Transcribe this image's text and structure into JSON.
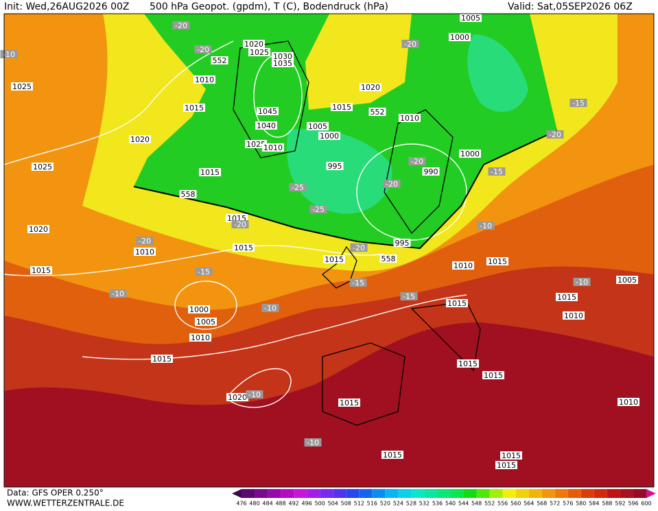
{
  "header": {
    "init": "Init: Wed,26AUG2026 00Z",
    "title": "500 hPa Geopot. (gpdm), T (C), Bodendruck (hPa)",
    "valid": "Valid: Sat,05SEP2026 06Z"
  },
  "map": {
    "pressure_labels": [
      "1005",
      "1000",
      "1020",
      "1025",
      "1030",
      "1035",
      "1010",
      "1015",
      "1045",
      "1040",
      "1025",
      "1010",
      "1005",
      "1000",
      "995",
      "1015",
      "1020",
      "1025",
      "1025",
      "1020",
      "1015",
      "1010",
      "1015",
      "1015",
      "1015",
      "995",
      "990",
      "1000",
      "1010",
      "1020",
      "1015",
      "1010",
      "1015",
      "1015",
      "1005",
      "1015",
      "1010",
      "1015",
      "1015",
      "1015",
      "1000",
      "1005",
      "1010",
      "1020",
      "1015",
      "1015",
      "1015",
      "1015",
      "1010"
    ],
    "temperature_labels": [
      "-20",
      "-20",
      "-20",
      "-15",
      "-20",
      "-15",
      "-20",
      "-20",
      "-25",
      "-25",
      "-20",
      "-20",
      "-20",
      "-15",
      "-10",
      "-10",
      "-15",
      "-15",
      "-10",
      "-10",
      "-10",
      "-10",
      "-10"
    ],
    "height_labels": [
      "552",
      "552",
      "558",
      "558"
    ]
  },
  "colorbar": {
    "labels": [
      "476",
      "480",
      "484",
      "488",
      "492",
      "496",
      "500",
      "504",
      "508",
      "512",
      "516",
      "520",
      "524",
      "528",
      "532",
      "536",
      "540",
      "544",
      "548",
      "552",
      "556",
      "560",
      "564",
      "568",
      "572",
      "576",
      "580",
      "584",
      "588",
      "592",
      "596",
      "600"
    ],
    "colors": [
      "#3b0a4a",
      "#5a0a6e",
      "#780a8c",
      "#960aa8",
      "#b40ac4",
      "#c814d8",
      "#a01ee6",
      "#7828f0",
      "#5032f0",
      "#2846f0",
      "#1464f0",
      "#0a8cf0",
      "#0ab4f0",
      "#0ad2e6",
      "#0ae6c8",
      "#0ae6a0",
      "#0ae678",
      "#0ae650",
      "#14dc14",
      "#50e60a",
      "#a0f00a",
      "#f0f00a",
      "#f0d20a",
      "#f0b40a",
      "#f0960a",
      "#f0780a",
      "#e65a0a",
      "#dc3c0a",
      "#d2280f",
      "#be1414",
      "#aa0f1e",
      "#960a28",
      "#d2148c"
    ]
  },
  "footer": {
    "data": "Data: GFS OPER 0.250°",
    "site": "WWW.WETTERZENTRALE.DE"
  }
}
